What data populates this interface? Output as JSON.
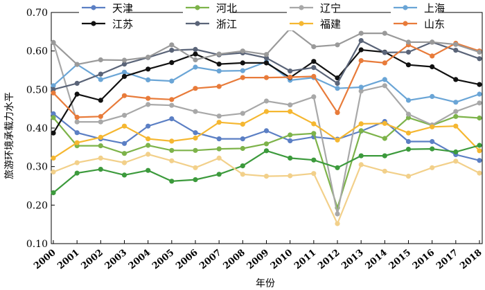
{
  "chart_data": {
    "type": "line",
    "title": "",
    "xlabel": "年份",
    "ylabel": "旅游环境承载力水平",
    "ylim": [
      0.1,
      0.7
    ],
    "yticks": [
      "0.10",
      "0.20",
      "0.30",
      "0.40",
      "0.50",
      "0.60",
      "0.70"
    ],
    "categories": [
      "2000",
      "2001",
      "2002",
      "2003",
      "2004",
      "2005",
      "2006",
      "2007",
      "2008",
      "2009",
      "2010",
      "2011",
      "2012",
      "2013",
      "2014",
      "2015",
      "2016",
      "2017",
      "2018"
    ],
    "series": [
      {
        "name": "天津",
        "color": "#5b7fc4",
        "values": [
          0.437,
          0.388,
          0.372,
          0.36,
          0.405,
          0.424,
          0.388,
          0.372,
          0.372,
          0.393,
          0.367,
          0.377,
          0.371,
          0.392,
          0.417,
          0.365,
          0.365,
          0.331,
          0.316
        ]
      },
      {
        "name": "河北",
        "color": "#7db34a",
        "values": [
          0.427,
          0.354,
          0.354,
          0.334,
          0.355,
          0.342,
          0.342,
          0.346,
          0.347,
          0.359,
          0.382,
          0.386,
          0.193,
          0.393,
          0.373,
          0.427,
          0.407,
          0.43,
          0.426
        ]
      },
      {
        "name": "辽宁",
        "color": "#a8a8a8",
        "values": [
          0.622,
          0.416,
          0.416,
          0.433,
          0.461,
          0.459,
          0.443,
          0.431,
          0.438,
          0.47,
          0.46,
          0.481,
          0.177,
          0.496,
          0.51,
          0.436,
          0.408,
          0.443,
          0.465
        ]
      },
      {
        "name": "上海",
        "color": "#6aa5d6",
        "values": [
          0.51,
          0.565,
          0.526,
          0.545,
          0.525,
          0.522,
          0.558,
          0.548,
          0.549,
          0.572,
          0.524,
          0.531,
          0.503,
          0.506,
          0.526,
          0.472,
          0.482,
          0.467,
          0.488
        ]
      },
      {
        "name": "江苏",
        "color": "#111111",
        "values": [
          0.387,
          0.488,
          0.472,
          0.534,
          0.553,
          0.57,
          0.592,
          0.566,
          0.569,
          0.569,
          0.531,
          0.573,
          0.53,
          0.603,
          0.597,
          0.564,
          0.559,
          0.526,
          0.513
        ]
      },
      {
        "name": "浙江",
        "color": "#5a6478",
        "values": [
          0.5,
          0.516,
          0.54,
          0.566,
          0.583,
          0.602,
          0.604,
          0.59,
          0.595,
          0.582,
          0.548,
          0.557,
          0.516,
          0.627,
          0.596,
          0.597,
          0.623,
          0.602,
          0.58
        ]
      },
      {
        "name": "福建",
        "color": "#f5b731",
        "values": [
          0.322,
          0.362,
          0.376,
          0.405,
          0.372,
          0.366,
          0.374,
          0.415,
          0.41,
          0.443,
          0.443,
          0.411,
          0.369,
          0.411,
          0.412,
          0.387,
          0.403,
          0.405,
          0.341
        ]
      },
      {
        "name": "山东",
        "color": "#e87b3a",
        "values": [
          0.491,
          0.428,
          0.43,
          0.484,
          0.477,
          0.474,
          0.503,
          0.508,
          0.531,
          0.531,
          0.532,
          0.534,
          0.44,
          0.575,
          0.569,
          0.616,
          0.587,
          0.62,
          0.6
        ]
      },
      {
        "name": "",
        "color": "#9a9a9a",
        "values": [
          0.622,
          0.565,
          0.577,
          0.576,
          0.584,
          0.616,
          0.577,
          0.592,
          0.6,
          0.591,
          0.658,
          0.611,
          0.616,
          0.646,
          0.646,
          0.623,
          0.623,
          0.617,
          0.597
        ]
      },
      {
        "name": "",
        "color": "#3c9a3c",
        "values": [
          0.232,
          0.283,
          0.293,
          0.278,
          0.29,
          0.262,
          0.266,
          0.28,
          0.302,
          0.341,
          0.322,
          0.317,
          0.297,
          0.328,
          0.328,
          0.345,
          0.346,
          0.338,
          0.355
        ]
      },
      {
        "name": "",
        "color": "#f2d08a",
        "values": [
          0.286,
          0.31,
          0.322,
          0.31,
          0.332,
          0.315,
          0.297,
          0.322,
          0.28,
          0.275,
          0.276,
          0.282,
          0.152,
          0.305,
          0.288,
          0.275,
          0.297,
          0.314,
          0.283
        ]
      }
    ]
  }
}
